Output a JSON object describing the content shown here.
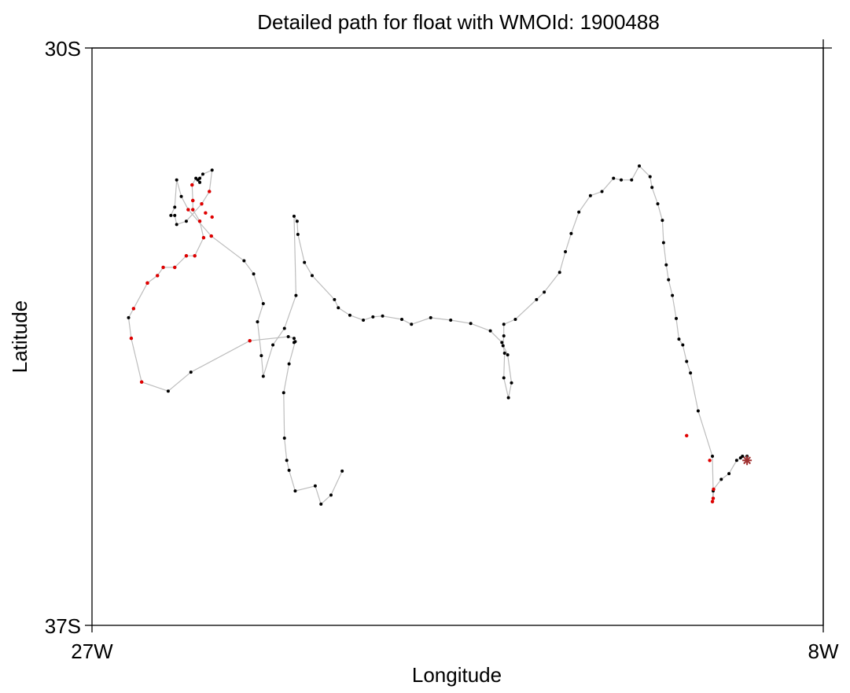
{
  "chart_data": {
    "type": "scatter",
    "title": "Detailed path for float with WMOId: 1900488",
    "xlabel": "Longitude",
    "ylabel": "Latitude",
    "xlim": [
      -27,
      -8
    ],
    "ylim": [
      -37,
      -30
    ],
    "x_ticks": [
      {
        "value": -27,
        "label": "27W"
      },
      {
        "value": -8,
        "label": "8W"
      }
    ],
    "y_ticks": [
      {
        "value": -30,
        "label": "30S"
      },
      {
        "value": -37,
        "label": "37S"
      }
    ],
    "grid": false,
    "colors": {
      "track": "#bdbdbd",
      "profile": "#000000",
      "flagged": "#e00000",
      "last_position": "#a03030"
    },
    "path": [
      [
        -9.98,
        -35.0
      ],
      [
        -9.98,
        -34.95
      ],
      [
        -10.1,
        -34.95
      ],
      [
        -10.15,
        -34.97
      ],
      [
        -10.25,
        -35.0
      ],
      [
        -10.45,
        -35.16
      ],
      [
        -10.65,
        -35.23
      ],
      [
        -10.85,
        -35.35
      ],
      [
        -10.86,
        -35.46
      ],
      [
        -10.88,
        -35.5
      ],
      [
        -10.86,
        -35.37
      ],
      [
        -10.88,
        -34.95
      ],
      [
        -11.25,
        -34.4
      ],
      [
        -11.45,
        -33.94
      ],
      [
        -11.55,
        -33.8
      ],
      [
        -11.65,
        -33.6
      ],
      [
        -11.75,
        -33.53
      ],
      [
        -11.82,
        -33.28
      ],
      [
        -11.92,
        -33.0
      ],
      [
        -12.02,
        -32.81
      ],
      [
        -12.08,
        -32.63
      ],
      [
        -12.15,
        -32.36
      ],
      [
        -12.18,
        -32.09
      ],
      [
        -12.3,
        -31.89
      ],
      [
        -12.45,
        -31.69
      ],
      [
        -12.5,
        -31.56
      ],
      [
        -12.78,
        -31.43
      ],
      [
        -12.98,
        -31.6
      ],
      [
        -13.25,
        -31.6
      ],
      [
        -13.45,
        -31.58
      ],
      [
        -13.75,
        -31.74
      ],
      [
        -14.05,
        -31.79
      ],
      [
        -14.35,
        -31.99
      ],
      [
        -14.55,
        -32.25
      ],
      [
        -14.7,
        -32.47
      ],
      [
        -14.85,
        -32.72
      ],
      [
        -15.25,
        -32.96
      ],
      [
        -15.45,
        -33.05
      ],
      [
        -16.0,
        -33.29
      ],
      [
        -16.3,
        -33.35
      ],
      [
        -16.3,
        -33.49
      ],
      [
        -16.32,
        -33.61
      ],
      [
        -16.28,
        -33.7
      ],
      [
        -16.3,
        -34.0
      ],
      [
        -16.18,
        -34.24
      ],
      [
        -16.1,
        -34.06
      ],
      [
        -16.2,
        -33.72
      ],
      [
        -16.35,
        -33.57
      ],
      [
        -16.65,
        -33.43
      ],
      [
        -17.16,
        -33.34
      ],
      [
        -17.68,
        -33.3
      ],
      [
        -18.2,
        -33.27
      ],
      [
        -18.7,
        -33.35
      ],
      [
        -18.95,
        -33.29
      ],
      [
        -19.45,
        -33.25
      ],
      [
        -19.7,
        -33.26
      ],
      [
        -19.95,
        -33.3
      ],
      [
        -20.3,
        -33.24
      ],
      [
        -20.6,
        -33.15
      ],
      [
        -20.7,
        -33.05
      ],
      [
        -21.28,
        -32.76
      ],
      [
        -21.48,
        -32.6
      ],
      [
        -21.65,
        -32.26
      ],
      [
        -21.67,
        -32.1
      ],
      [
        -21.75,
        -32.04
      ],
      [
        -21.7,
        -33.0
      ],
      [
        -22.0,
        -33.4
      ],
      [
        -22.3,
        -33.6
      ],
      [
        -22.55,
        -33.98
      ],
      [
        -22.6,
        -33.73
      ],
      [
        -22.7,
        -33.32
      ],
      [
        -22.55,
        -33.1
      ],
      [
        -22.8,
        -32.74
      ],
      [
        -23.05,
        -32.58
      ],
      [
        -23.9,
        -32.28
      ],
      [
        -24.5,
        -31.96
      ],
      [
        -24.68,
        -31.8
      ],
      [
        -24.8,
        -31.6
      ],
      [
        -24.85,
        -31.93
      ],
      [
        -24.95,
        -32.03
      ],
      [
        -24.85,
        -32.03
      ],
      [
        -24.8,
        -32.14
      ],
      [
        -24.55,
        -32.1
      ],
      [
        -24.15,
        -31.89
      ],
      [
        -23.95,
        -31.74
      ],
      [
        -23.88,
        -31.48
      ],
      [
        -24.12,
        -31.53
      ],
      [
        -24.2,
        -31.58
      ],
      [
        -24.2,
        -31.63
      ],
      [
        -24.25,
        -31.6
      ],
      [
        -24.3,
        -31.58
      ],
      [
        -24.4,
        -31.66
      ],
      [
        -24.38,
        -31.85
      ],
      [
        -24.38,
        -31.96
      ],
      [
        -24.2,
        -32.1
      ],
      [
        -24.1,
        -32.3
      ],
      [
        -24.33,
        -32.52
      ],
      [
        -24.55,
        -32.52
      ],
      [
        -24.85,
        -32.66
      ],
      [
        -25.15,
        -32.66
      ],
      [
        -25.3,
        -32.76
      ],
      [
        -25.56,
        -32.85
      ],
      [
        -25.92,
        -33.16
      ],
      [
        -26.05,
        -33.27
      ],
      [
        -25.98,
        -33.52
      ],
      [
        -25.71,
        -34.05
      ],
      [
        -25.02,
        -34.16
      ],
      [
        -24.43,
        -33.93
      ],
      [
        -22.9,
        -33.55
      ],
      [
        -21.9,
        -33.5
      ],
      [
        -21.75,
        -33.52
      ],
      [
        -21.75,
        -33.57
      ],
      [
        -21.72,
        -33.56
      ],
      [
        -21.88,
        -33.83
      ],
      [
        -22.02,
        -34.18
      ],
      [
        -22.0,
        -34.73
      ],
      [
        -21.94,
        -35.0
      ],
      [
        -21.88,
        -35.12
      ],
      [
        -21.72,
        -35.37
      ],
      [
        -21.2,
        -35.31
      ],
      [
        -21.05,
        -35.53
      ],
      [
        -20.79,
        -35.42
      ],
      [
        -20.5,
        -35.13
      ]
    ],
    "flagged": [
      [
        -10.85,
        -35.35
      ],
      [
        -10.88,
        -35.5
      ],
      [
        -10.86,
        -35.46
      ],
      [
        -10.95,
        -35.0
      ],
      [
        -11.55,
        -34.7
      ],
      [
        -22.9,
        -33.55
      ],
      [
        -25.71,
        -34.05
      ],
      [
        -25.56,
        -32.85
      ],
      [
        -25.92,
        -33.16
      ],
      [
        -25.98,
        -33.52
      ],
      [
        -24.5,
        -31.96
      ],
      [
        -24.15,
        -31.89
      ],
      [
        -24.38,
        -31.85
      ],
      [
        -24.38,
        -31.96
      ],
      [
        -24.2,
        -32.1
      ],
      [
        -24.33,
        -32.52
      ],
      [
        -24.55,
        -32.52
      ],
      [
        -24.85,
        -32.66
      ],
      [
        -25.15,
        -32.66
      ],
      [
        -25.3,
        -32.76
      ],
      [
        -23.95,
        -31.74
      ],
      [
        -23.9,
        -32.28
      ],
      [
        -24.05,
        -32.0
      ],
      [
        -24.4,
        -31.66
      ],
      [
        -24.38,
        -31.85
      ],
      [
        -24.1,
        -32.3
      ],
      [
        -25.56,
        -32.85
      ],
      [
        -23.88,
        -32.05
      ]
    ],
    "last_position": [
      -9.98,
      -35.0
    ]
  }
}
